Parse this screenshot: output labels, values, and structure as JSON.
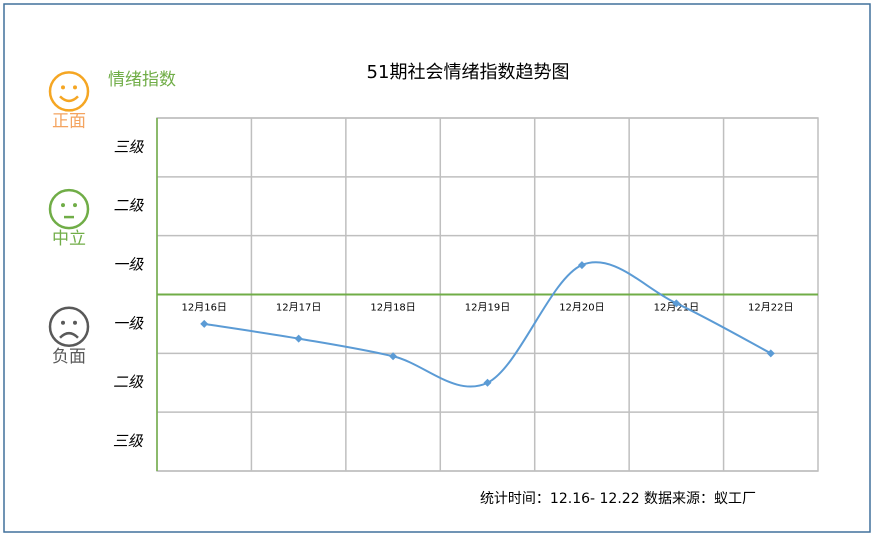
{
  "chart_data": {
    "type": "line",
    "title": "51期社会情绪指数趋势图",
    "y_label": "情绪指数",
    "categories": [
      "12月16日",
      "12月17日",
      "12月18日",
      "12月19日",
      "12月20日",
      "12月21日",
      "12月22日"
    ],
    "series": [
      {
        "name": "情绪指数",
        "color": "#5b9bd5",
        "values": [
          -0.5,
          -0.75,
          -1.05,
          -1.5,
          0.5,
          -0.15,
          -1.0
        ]
      }
    ],
    "ylim": [
      -3,
      3
    ],
    "ygrid": [
      -3,
      -2,
      -1,
      0,
      1,
      2,
      3
    ],
    "yticks": [
      {
        "value": 2.5,
        "label": "三级"
      },
      {
        "value": 1.5,
        "label": "二级"
      },
      {
        "value": 0.5,
        "label": "一级"
      },
      {
        "value": -0.5,
        "label": "一级"
      },
      {
        "value": -1.5,
        "label": "二级"
      },
      {
        "value": -2.5,
        "label": "三级"
      }
    ],
    "grid": true,
    "zero_line_color": "#70ad47",
    "sentiments": [
      {
        "label": "正面",
        "color": "#f5a623",
        "text_color": "#f4a460",
        "face": "smile",
        "value": 2.5
      },
      {
        "label": "中立",
        "color": "#70ad47",
        "text_color": "#70ad47",
        "face": "neutral",
        "value": 0.5
      },
      {
        "label": "负面",
        "color": "#595959",
        "text_color": "#595959",
        "face": "sad",
        "value": -1.5
      }
    ],
    "source": "统计时间：12.16- 12.22  数据来源：蚁工厂"
  }
}
